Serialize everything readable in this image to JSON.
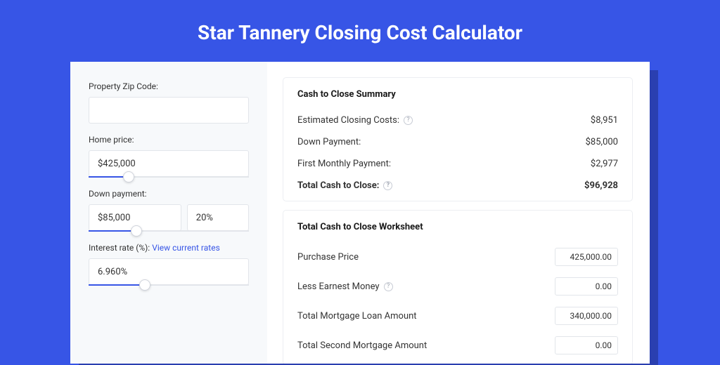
{
  "colors": {
    "page_bg": "#3755e6",
    "shadow": "#2a3fb0",
    "card_bg": "#ffffff",
    "sidebar_bg": "#f7f9fb",
    "border": "#e2e5ea",
    "text": "#333333",
    "link": "#3755e6"
  },
  "title": "Star Tannery Closing Cost Calculator",
  "sidebar": {
    "zip": {
      "label": "Property Zip Code:",
      "value": ""
    },
    "home_price": {
      "label": "Home price:",
      "value": "$425,000",
      "slider_pct": 25
    },
    "down_payment": {
      "label": "Down payment:",
      "value": "$85,000",
      "pct": "20%",
      "slider_pct": 30
    },
    "interest": {
      "label_prefix": "Interest rate (%): ",
      "link": "View current rates",
      "value": "6.960%",
      "slider_pct": 35
    }
  },
  "summary": {
    "title": "Cash to Close Summary",
    "rows": [
      {
        "label": "Estimated Closing Costs:",
        "help": true,
        "value": "$8,951",
        "bold": false
      },
      {
        "label": "Down Payment:",
        "help": false,
        "value": "$85,000",
        "bold": false
      },
      {
        "label": "First Monthly Payment:",
        "help": false,
        "value": "$2,977",
        "bold": false
      },
      {
        "label": "Total Cash to Close:",
        "help": true,
        "value": "$96,928",
        "bold": true
      }
    ]
  },
  "worksheet": {
    "title": "Total Cash to Close Worksheet",
    "rows": [
      {
        "label": "Purchase Price",
        "help": false,
        "value": "425,000.00"
      },
      {
        "label": "Less Earnest Money",
        "help": true,
        "value": "0.00"
      },
      {
        "label": "Total Mortgage Loan Amount",
        "help": false,
        "value": "340,000.00"
      },
      {
        "label": "Total Second Mortgage Amount",
        "help": false,
        "value": "0.00"
      }
    ]
  }
}
